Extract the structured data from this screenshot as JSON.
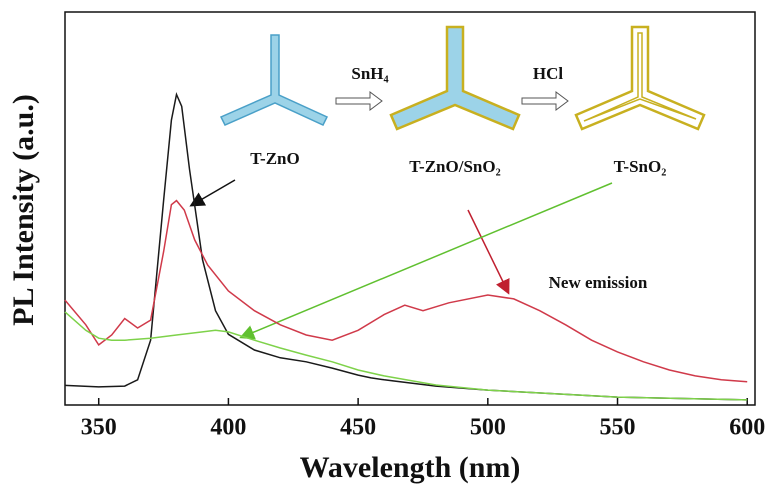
{
  "chart_data": {
    "type": "line",
    "xlabel": "Wavelength (nm)",
    "ylabel": "PL Intensity (a.u.)",
    "xlim": [
      337,
      603
    ],
    "ylim": [
      0,
      100
    ],
    "xticks": [
      350,
      400,
      450,
      500,
      550,
      600
    ],
    "annotations": [
      "T-ZnO",
      "SnH₄",
      "HCl",
      "T-ZnO/SnO₂",
      "T-SnO₂",
      "New emission"
    ],
    "series": [
      {
        "color": "#1a1a1a",
        "x": [
          337,
          350,
          360,
          365,
          370,
          375,
          378,
          380,
          382,
          385,
          390,
          395,
          400,
          410,
          420,
          430,
          440,
          450,
          455,
          460,
          480,
          500,
          550,
          600
        ],
        "values": [
          5,
          4.6,
          4.8,
          6.4,
          16.5,
          52,
          72.5,
          79,
          76,
          60,
          37,
          24,
          18,
          14,
          12,
          11,
          9.4,
          7.6,
          6.9,
          6.4,
          4.8,
          3.8,
          2,
          1.3
        ]
      },
      {
        "color": "#d03a4a",
        "x": [
          337,
          345,
          350,
          355,
          360,
          365,
          370,
          375,
          378,
          380,
          383,
          387,
          392,
          400,
          410,
          420,
          430,
          440,
          450,
          460,
          468,
          475,
          485,
          500,
          510,
          520,
          530,
          540,
          550,
          560,
          570,
          580,
          590,
          600
        ],
        "values": [
          26.7,
          20.4,
          15.3,
          17.8,
          22,
          19.6,
          21.6,
          39,
          51,
          52,
          49.6,
          42,
          35.6,
          29,
          24,
          20.4,
          17.8,
          16.5,
          19,
          23,
          25.4,
          24,
          26,
          28,
          27,
          24,
          20.4,
          16.5,
          13.5,
          11,
          8.9,
          7.4,
          6.4,
          5.9
        ]
      },
      {
        "color": "#7ed24a",
        "x": [
          337,
          345,
          350,
          355,
          360,
          370,
          380,
          390,
          395,
          400,
          410,
          420,
          430,
          440,
          450,
          460,
          480,
          500,
          550,
          600
        ],
        "values": [
          23.7,
          19,
          17,
          16.5,
          16.5,
          17,
          17.8,
          18.6,
          19,
          18.6,
          16.5,
          14.5,
          12.7,
          11,
          8.9,
          7.4,
          5.1,
          3.8,
          2,
          1.3
        ]
      }
    ]
  }
}
